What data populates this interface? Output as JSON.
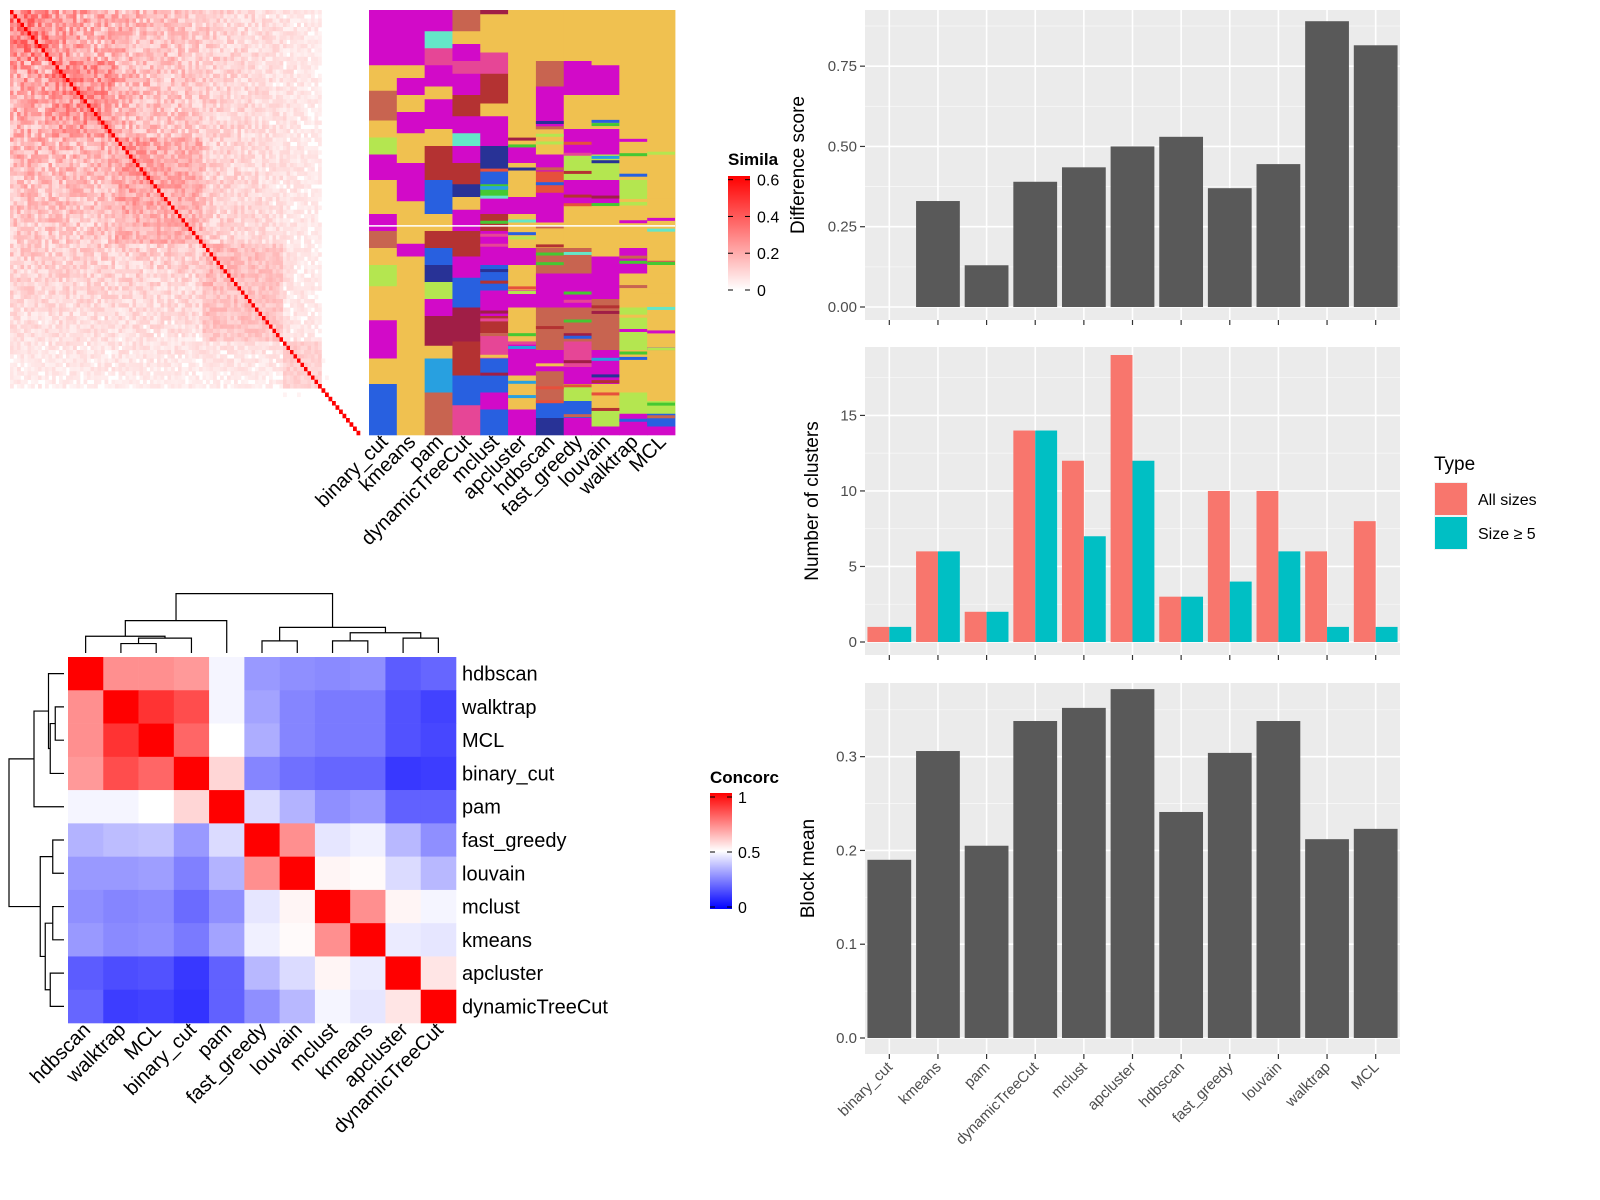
{
  "chart_data": [
    {
      "type": "heatmap",
      "panel": "cell-similarity",
      "legend_title": "Simila",
      "legend_ticks": [
        "0",
        "0.2",
        "0.4",
        "0.6"
      ],
      "legend_values": [
        0,
        0.2,
        0.4,
        0.6
      ],
      "colors": {
        "low": "#ffffff",
        "high": "#ff0000"
      }
    },
    {
      "type": "heatmap",
      "panel": "cluster-assignments",
      "columns": [
        "binary_cut",
        "kmeans",
        "pam",
        "dynamicTreeCut",
        "mclust",
        "apcluster",
        "hdbscan",
        "fast_greedy",
        "louvain",
        "walktrap",
        "MCL"
      ]
    },
    {
      "type": "heatmap",
      "panel": "concordance",
      "legend_title": "Concorc",
      "legend_ticks": [
        "0",
        "0.5",
        "1"
      ],
      "legend_values": [
        0,
        0.5,
        1
      ],
      "colors": {
        "low": "#0000ff",
        "mid": "#ffffff",
        "high": "#ff0000"
      },
      "rows": [
        "hdbscan",
        "walktrap",
        "MCL",
        "binary_cut",
        "pam",
        "fast_greedy",
        "louvain",
        "mclust",
        "kmeans",
        "apcluster",
        "dynamicTreeCut"
      ],
      "columns": [
        "hdbscan",
        "walktrap",
        "MCL",
        "binary_cut",
        "pam",
        "fast_greedy",
        "louvain",
        "mclust",
        "kmeans",
        "apcluster",
        "dynamicTreeCut"
      ],
      "values": [
        [
          1.0,
          0.72,
          0.72,
          0.7,
          0.48,
          0.3,
          0.28,
          0.27,
          0.28,
          0.18,
          0.2
        ],
        [
          0.72,
          1.0,
          0.9,
          0.85,
          0.48,
          0.32,
          0.26,
          0.24,
          0.24,
          0.16,
          0.13
        ],
        [
          0.72,
          0.9,
          1.0,
          0.8,
          0.5,
          0.34,
          0.26,
          0.24,
          0.24,
          0.16,
          0.14
        ],
        [
          0.7,
          0.85,
          0.8,
          1.0,
          0.58,
          0.26,
          0.22,
          0.2,
          0.2,
          0.11,
          0.12
        ],
        [
          0.48,
          0.48,
          0.5,
          0.58,
          1.0,
          0.43,
          0.35,
          0.28,
          0.3,
          0.19,
          0.19
        ],
        [
          0.35,
          0.37,
          0.38,
          0.3,
          0.43,
          1.0,
          0.72,
          0.45,
          0.47,
          0.36,
          0.28
        ],
        [
          0.3,
          0.3,
          0.31,
          0.25,
          0.35,
          0.72,
          1.0,
          0.52,
          0.51,
          0.43,
          0.36
        ],
        [
          0.28,
          0.26,
          0.27,
          0.21,
          0.28,
          0.45,
          0.52,
          1.0,
          0.72,
          0.52,
          0.48
        ],
        [
          0.3,
          0.27,
          0.28,
          0.24,
          0.32,
          0.47,
          0.51,
          0.72,
          1.0,
          0.46,
          0.45
        ],
        [
          0.18,
          0.15,
          0.16,
          0.11,
          0.19,
          0.36,
          0.43,
          0.52,
          0.46,
          1.0,
          0.55
        ],
        [
          0.2,
          0.12,
          0.13,
          0.1,
          0.19,
          0.28,
          0.36,
          0.48,
          0.45,
          0.55,
          1.0
        ]
      ]
    },
    {
      "type": "bar",
      "panel": "difference-score",
      "categories": [
        "binary_cut",
        "kmeans",
        "pam",
        "dynamicTreeCut",
        "mclust",
        "apcluster",
        "hdbscan",
        "fast_greedy",
        "louvain",
        "walktrap",
        "MCL"
      ],
      "values": [
        0.0,
        0.33,
        0.13,
        0.39,
        0.435,
        0.5,
        0.53,
        0.37,
        0.445,
        0.89,
        0.815
      ],
      "ylabel": "Difference score",
      "ylim": [
        0,
        0.9
      ],
      "yticks": [
        0.0,
        0.25,
        0.5,
        0.75
      ],
      "ytick_labels": [
        "0.00",
        "0.25",
        "0.50",
        "0.75"
      ],
      "color": "#595959",
      "grid": true
    },
    {
      "type": "bar",
      "panel": "number-of-clusters",
      "categories": [
        "binary_cut",
        "kmeans",
        "pam",
        "dynamicTreeCut",
        "mclust",
        "apcluster",
        "hdbscan",
        "fast_greedy",
        "louvain",
        "walktrap",
        "MCL"
      ],
      "series": [
        {
          "name": "All sizes",
          "color": "#f8766d",
          "values": [
            1,
            6,
            2,
            14,
            12,
            19,
            3,
            10,
            10,
            6,
            8
          ]
        },
        {
          "name": "Size ≥ 5",
          "color": "#00bfc4",
          "values": [
            1,
            6,
            2,
            14,
            7,
            12,
            3,
            4,
            6,
            1,
            1
          ]
        }
      ],
      "ylabel": "Number of clusters",
      "ylim": [
        0,
        19
      ],
      "yticks": [
        0,
        5,
        10,
        15
      ],
      "ytick_labels": [
        "0",
        "5",
        "10",
        "15"
      ],
      "legend_title": "Type",
      "legend_position": "right",
      "grid": true
    },
    {
      "type": "bar",
      "panel": "block-mean",
      "categories": [
        "binary_cut",
        "kmeans",
        "pam",
        "dynamicTreeCut",
        "mclust",
        "apcluster",
        "hdbscan",
        "fast_greedy",
        "louvain",
        "walktrap",
        "MCL"
      ],
      "values": [
        0.19,
        0.306,
        0.205,
        0.338,
        0.352,
        0.372,
        0.241,
        0.304,
        0.338,
        0.212,
        0.223
      ],
      "ylabel": "Block mean",
      "ylim": [
        0,
        0.37
      ],
      "yticks": [
        0.0,
        0.1,
        0.2,
        0.3
      ],
      "ytick_labels": [
        "0.0",
        "0.1",
        "0.2",
        "0.3"
      ],
      "color": "#595959",
      "grid": true
    }
  ]
}
